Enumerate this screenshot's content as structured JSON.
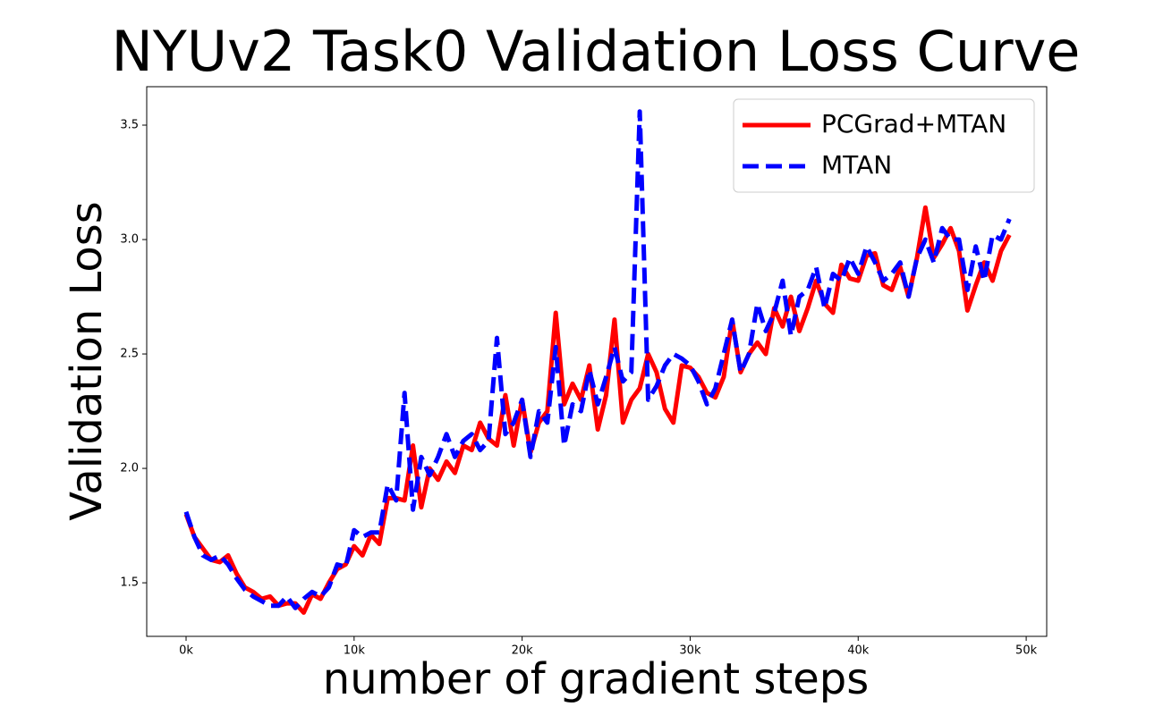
{
  "chart_data": {
    "type": "line",
    "title": "NYUv2 Task0 Validation Loss Curve",
    "x_label": "number of gradient steps",
    "y_label": "Validation Loss",
    "x": [
      0,
      500,
      1000,
      1500,
      2000,
      2500,
      3000,
      3500,
      4000,
      4500,
      5000,
      5500,
      6000,
      6500,
      7000,
      7500,
      8000,
      8500,
      9000,
      9500,
      10000,
      10500,
      11000,
      11500,
      12000,
      12500,
      13000,
      13500,
      14000,
      14500,
      15000,
      15500,
      16000,
      16500,
      17000,
      17500,
      18000,
      18500,
      19000,
      19500,
      20000,
      20500,
      21000,
      21500,
      22000,
      22500,
      23000,
      23500,
      24000,
      24500,
      25000,
      25500,
      26000,
      26500,
      27000,
      27500,
      28000,
      28500,
      29000,
      29500,
      30000,
      30500,
      31000,
      31500,
      32000,
      32500,
      33000,
      33500,
      34000,
      34500,
      35000,
      35500,
      36000,
      36500,
      37000,
      37500,
      38000,
      38500,
      39000,
      39500,
      40000,
      40500,
      41000,
      41500,
      42000,
      42500,
      43000,
      43500,
      44000,
      44500,
      45000,
      45500,
      46000,
      46500,
      47000,
      47500,
      48000,
      48500,
      49000
    ],
    "series": [
      {
        "name": "PCGrad+MTAN",
        "color": "#ff0000",
        "dashed": false,
        "values": [
          1.8,
          1.7,
          1.65,
          1.6,
          1.59,
          1.62,
          1.54,
          1.48,
          1.46,
          1.43,
          1.44,
          1.4,
          1.41,
          1.41,
          1.37,
          1.45,
          1.43,
          1.5,
          1.56,
          1.58,
          1.66,
          1.62,
          1.71,
          1.67,
          1.87,
          1.87,
          1.86,
          2.1,
          1.83,
          2.0,
          1.95,
          2.03,
          1.98,
          2.1,
          2.08,
          2.2,
          2.13,
          2.1,
          2.32,
          2.1,
          2.3,
          2.07,
          2.2,
          2.25,
          2.68,
          2.28,
          2.37,
          2.3,
          2.45,
          2.17,
          2.32,
          2.65,
          2.2,
          2.3,
          2.35,
          2.5,
          2.42,
          2.26,
          2.2,
          2.45,
          2.44,
          2.4,
          2.33,
          2.31,
          2.4,
          2.65,
          2.42,
          2.5,
          2.55,
          2.5,
          2.7,
          2.62,
          2.75,
          2.6,
          2.7,
          2.82,
          2.72,
          2.68,
          2.89,
          2.83,
          2.82,
          2.93,
          2.94,
          2.8,
          2.78,
          2.88,
          2.75,
          2.92,
          3.14,
          2.92,
          2.98,
          3.05,
          2.95,
          2.69,
          2.8,
          2.9,
          2.82,
          2.95,
          3.02
        ]
      },
      {
        "name": "MTAN",
        "color": "#0000ff",
        "dashed": true,
        "values": [
          1.81,
          1.7,
          1.62,
          1.6,
          1.62,
          1.58,
          1.52,
          1.47,
          1.44,
          1.42,
          1.4,
          1.4,
          1.44,
          1.39,
          1.43,
          1.46,
          1.44,
          1.48,
          1.58,
          1.57,
          1.73,
          1.7,
          1.72,
          1.72,
          1.93,
          1.86,
          2.33,
          1.82,
          2.05,
          1.97,
          2.05,
          2.15,
          2.05,
          2.12,
          2.15,
          2.08,
          2.12,
          2.57,
          2.15,
          2.2,
          2.3,
          2.05,
          2.25,
          2.2,
          2.53,
          2.1,
          2.28,
          2.25,
          2.43,
          2.28,
          2.4,
          2.53,
          2.38,
          2.42,
          3.56,
          2.3,
          2.36,
          2.45,
          2.5,
          2.48,
          2.45,
          2.38,
          2.28,
          2.35,
          2.5,
          2.65,
          2.42,
          2.5,
          2.72,
          2.6,
          2.68,
          2.82,
          2.58,
          2.75,
          2.78,
          2.88,
          2.7,
          2.85,
          2.82,
          2.92,
          2.85,
          2.97,
          2.9,
          2.82,
          2.85,
          2.9,
          2.75,
          2.92,
          3.0,
          2.9,
          3.05,
          3.0,
          3.0,
          2.78,
          2.97,
          2.82,
          3.02,
          3.0,
          3.09
        ]
      }
    ],
    "xlim": [
      -2343,
      51220
    ],
    "ylim": [
      1.266,
      3.668
    ],
    "xticks": [
      {
        "value": 0,
        "label": "0k"
      },
      {
        "value": 10000,
        "label": "10k"
      },
      {
        "value": 20000,
        "label": "20k"
      },
      {
        "value": 30000,
        "label": "30k"
      },
      {
        "value": 40000,
        "label": "40k"
      },
      {
        "value": 50000,
        "label": "50k"
      }
    ],
    "yticks": [
      1.5,
      {
        "value": 2.0,
        "label": "2.0"
      },
      2.5,
      {
        "value": 3.0,
        "label": "3.0"
      },
      3.5
    ],
    "grid": false,
    "legend": "upper right"
  }
}
